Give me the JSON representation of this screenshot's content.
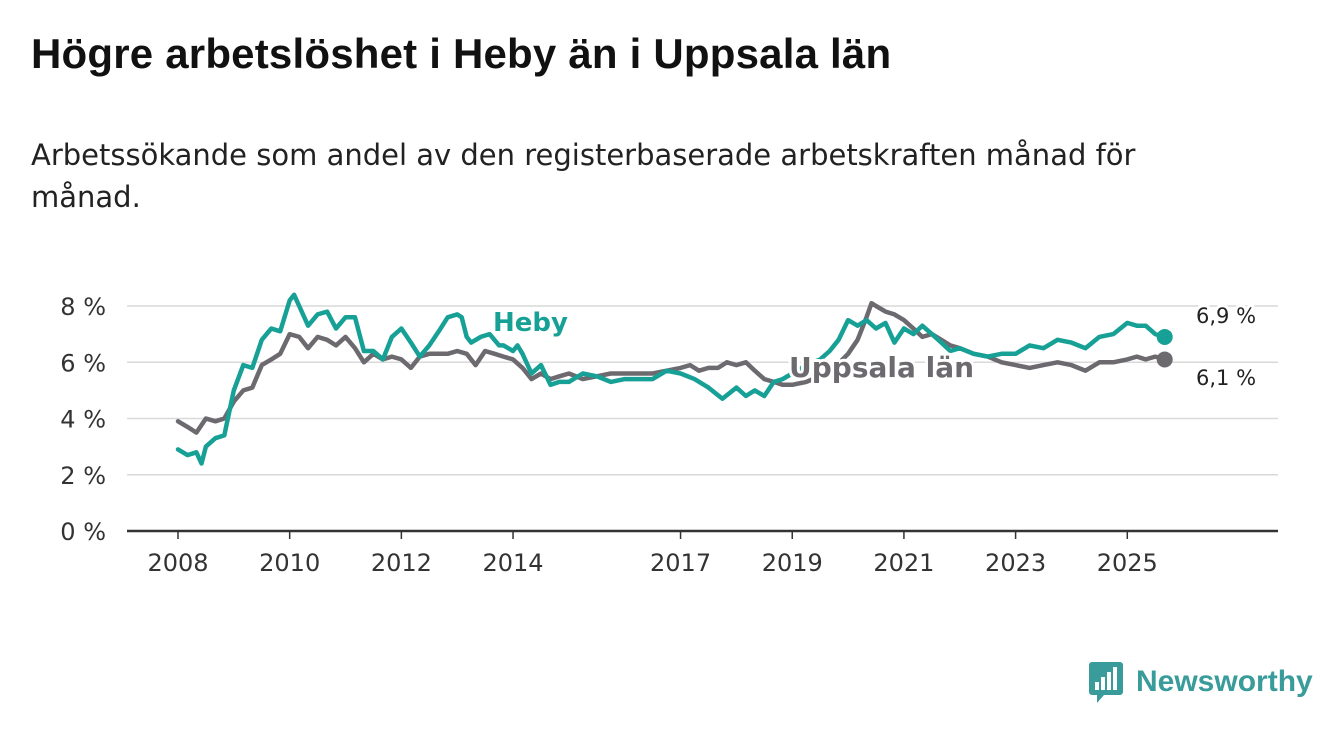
{
  "title": "Högre arbetslöshet i Heby än i Uppsala län",
  "subtitle": "Arbetssökande som andel av den registerbaserade arbetskraften månad för månad.",
  "brand": {
    "name": "Newsworthy"
  },
  "colors": {
    "heby": "#17a096",
    "uppsala": "#6c6a6f",
    "grid": "#d9d9d9",
    "axis": "#333333"
  },
  "chart_data": {
    "type": "line",
    "title": "Högre arbetslöshet i Heby än i Uppsala län",
    "xlabel": "",
    "ylabel": "",
    "xlim": [
      2008.0,
      2026.75
    ],
    "ylim": [
      0,
      8
    ],
    "yticks": [
      0,
      2,
      4,
      6,
      8
    ],
    "ytick_labels": [
      "0 %",
      "2 %",
      "4 %",
      "6 %",
      "8 %"
    ],
    "xticks": [
      2008,
      2010,
      2012,
      2014,
      2017,
      2019,
      2021,
      2023,
      2025
    ],
    "xtick_labels": [
      "2008",
      "2010",
      "2012",
      "2014",
      "2017",
      "2019",
      "2021",
      "2023",
      "2025"
    ],
    "grid": true,
    "series": [
      {
        "name": "Heby",
        "label": "Heby",
        "end_label": "6,9 %",
        "x": [
          2008.0,
          2008.17,
          2008.33,
          2008.42,
          2008.5,
          2008.67,
          2008.83,
          2009.0,
          2009.17,
          2009.33,
          2009.5,
          2009.67,
          2009.83,
          2010.0,
          2010.08,
          2010.17,
          2010.33,
          2010.5,
          2010.67,
          2010.83,
          2011.0,
          2011.17,
          2011.33,
          2011.5,
          2011.67,
          2011.83,
          2012.0,
          2012.17,
          2012.33,
          2012.5,
          2012.67,
          2012.83,
          2013.0,
          2013.08,
          2013.17,
          2013.25,
          2013.42,
          2013.58,
          2013.75,
          2013.83,
          2014.0,
          2014.08,
          2014.17,
          2014.33,
          2014.5,
          2014.67,
          2014.83,
          2015.0,
          2015.25,
          2015.5,
          2015.75,
          2016.0,
          2016.25,
          2016.5,
          2016.75,
          2017.0,
          2017.25,
          2017.5,
          2017.75,
          2018.0,
          2018.17,
          2018.33,
          2018.5,
          2018.67,
          2018.83,
          2019.0,
          2019.25,
          2019.5,
          2019.67,
          2019.83,
          2020.0,
          2020.17,
          2020.33,
          2020.5,
          2020.67,
          2020.83,
          2021.0,
          2021.17,
          2021.33,
          2021.5,
          2021.67,
          2021.83,
          2022.0,
          2022.25,
          2022.5,
          2022.75,
          2023.0,
          2023.25,
          2023.5,
          2023.75,
          2024.0,
          2024.25,
          2024.5,
          2024.75,
          2025.0,
          2025.17,
          2025.33,
          2025.5,
          2025.67
        ],
        "values": [
          2.9,
          2.7,
          2.8,
          2.4,
          3.0,
          3.3,
          3.4,
          5.0,
          5.9,
          5.8,
          6.8,
          7.2,
          7.1,
          8.2,
          8.4,
          8.0,
          7.3,
          7.7,
          7.8,
          7.2,
          7.6,
          7.6,
          6.4,
          6.4,
          6.1,
          6.9,
          7.2,
          6.7,
          6.2,
          6.6,
          7.1,
          7.6,
          7.7,
          7.6,
          6.9,
          6.7,
          6.9,
          7.0,
          6.6,
          6.6,
          6.4,
          6.6,
          6.3,
          5.6,
          5.9,
          5.2,
          5.3,
          5.3,
          5.6,
          5.5,
          5.3,
          5.4,
          5.4,
          5.4,
          5.7,
          5.6,
          5.4,
          5.1,
          4.7,
          5.1,
          4.8,
          5.0,
          4.8,
          5.3,
          5.4,
          5.6,
          5.9,
          6.1,
          6.4,
          6.8,
          7.5,
          7.3,
          7.5,
          7.2,
          7.4,
          6.7,
          7.2,
          7.0,
          7.3,
          7.0,
          6.7,
          6.4,
          6.5,
          6.3,
          6.2,
          6.3,
          6.3,
          6.6,
          6.5,
          6.8,
          6.7,
          6.5,
          6.9,
          7.0,
          7.4,
          7.3,
          7.3,
          7.0,
          6.9
        ]
      },
      {
        "name": "Uppsala län",
        "label": "Uppsala län",
        "end_label": "6,1 %",
        "x": [
          2008.0,
          2008.17,
          2008.33,
          2008.5,
          2008.67,
          2008.83,
          2009.0,
          2009.17,
          2009.33,
          2009.5,
          2009.67,
          2009.83,
          2010.0,
          2010.17,
          2010.33,
          2010.5,
          2010.67,
          2010.83,
          2011.0,
          2011.17,
          2011.33,
          2011.5,
          2011.67,
          2011.83,
          2012.0,
          2012.17,
          2012.33,
          2012.5,
          2012.67,
          2012.83,
          2013.0,
          2013.17,
          2013.33,
          2013.5,
          2013.67,
          2013.83,
          2014.0,
          2014.17,
          2014.33,
          2014.5,
          2014.67,
          2014.83,
          2015.0,
          2015.25,
          2015.5,
          2015.75,
          2016.0,
          2016.25,
          2016.5,
          2016.75,
          2017.0,
          2017.17,
          2017.33,
          2017.5,
          2017.67,
          2017.83,
          2018.0,
          2018.17,
          2018.33,
          2018.5,
          2018.67,
          2018.83,
          2019.0,
          2019.25,
          2019.5,
          2019.75,
          2020.0,
          2020.17,
          2020.33,
          2020.42,
          2020.5,
          2020.67,
          2020.83,
          2021.0,
          2021.17,
          2021.33,
          2021.5,
          2021.67,
          2021.83,
          2022.0,
          2022.25,
          2022.5,
          2022.75,
          2023.0,
          2023.25,
          2023.5,
          2023.75,
          2024.0,
          2024.25,
          2024.5,
          2024.75,
          2025.0,
          2025.17,
          2025.33,
          2025.5,
          2025.67
        ],
        "values": [
          3.9,
          3.7,
          3.5,
          4.0,
          3.9,
          4.0,
          4.6,
          5.0,
          5.1,
          5.9,
          6.1,
          6.3,
          7.0,
          6.9,
          6.5,
          6.9,
          6.8,
          6.6,
          6.9,
          6.5,
          6.0,
          6.3,
          6.1,
          6.2,
          6.1,
          5.8,
          6.2,
          6.3,
          6.3,
          6.3,
          6.4,
          6.3,
          5.9,
          6.4,
          6.3,
          6.2,
          6.1,
          5.8,
          5.4,
          5.6,
          5.4,
          5.5,
          5.6,
          5.4,
          5.5,
          5.6,
          5.6,
          5.6,
          5.6,
          5.7,
          5.8,
          5.9,
          5.7,
          5.8,
          5.8,
          6.0,
          5.9,
          6.0,
          5.7,
          5.4,
          5.3,
          5.2,
          5.2,
          5.3,
          5.5,
          5.8,
          6.3,
          6.8,
          7.6,
          8.1,
          8.0,
          7.8,
          7.7,
          7.5,
          7.2,
          6.9,
          7.0,
          6.8,
          6.6,
          6.5,
          6.3,
          6.2,
          6.0,
          5.9,
          5.8,
          5.9,
          6.0,
          5.9,
          5.7,
          6.0,
          6.0,
          6.1,
          6.2,
          6.1,
          6.2,
          6.1
        ]
      }
    ]
  }
}
